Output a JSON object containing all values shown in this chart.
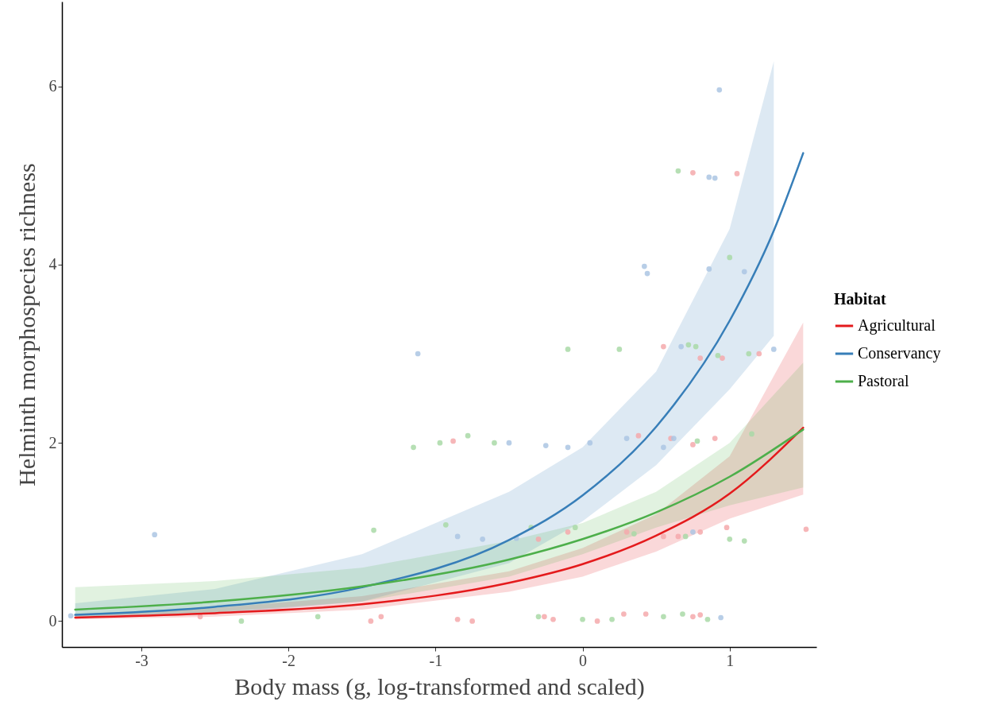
{
  "chart_data": {
    "type": "line",
    "xlabel": "Body mass (g, log-transformed and scaled)",
    "ylabel": "Helminth morphospecies richness",
    "legend_title": "Habitat",
    "legend": "right",
    "grid": false,
    "xlim": [
      -3.54,
      1.59
    ],
    "ylim": [
      -0.29,
      6.95
    ],
    "xticks": [
      -3,
      -2,
      -1,
      0,
      1
    ],
    "yticks": [
      0,
      2,
      4,
      6
    ],
    "series": [
      {
        "type": "scatter",
        "color": "#f4a9ab",
        "x": [
          -2.6,
          -1.44,
          -1.37,
          -0.88,
          -0.85,
          -0.75,
          -0.26,
          -0.2,
          0.1,
          0.28,
          0.43,
          0.75,
          0.8,
          -0.1,
          0.3,
          0.55,
          0.65,
          0.8,
          0.98,
          0.38,
          0.6,
          0.75,
          0.9,
          0.8,
          0.95,
          1.2,
          0.75,
          1.05,
          1.52,
          -0.3,
          0.55
        ],
        "values": [
          0.05,
          0.0,
          0.05,
          2.02,
          0.02,
          0.0,
          0.05,
          0.02,
          0.0,
          0.08,
          0.08,
          0.05,
          0.07,
          1.0,
          1.0,
          0.95,
          0.95,
          1.0,
          1.05,
          2.08,
          2.05,
          1.98,
          2.05,
          2.95,
          2.95,
          3.0,
          5.03,
          5.02,
          1.03,
          0.92,
          3.08
        ]
      },
      {
        "type": "scatter",
        "color": "#abc6e3",
        "x": [
          -3.48,
          -2.91,
          -1.12,
          -0.85,
          -0.45,
          -0.5,
          -0.25,
          -0.1,
          0.05,
          0.3,
          0.55,
          0.42,
          0.44,
          0.67,
          0.86,
          0.93,
          0.86,
          0.9,
          0.94,
          1.1,
          0.75,
          1.3,
          0.62,
          -0.68
        ],
        "values": [
          0.06,
          0.97,
          3.0,
          0.95,
          0.93,
          2.0,
          1.97,
          1.95,
          2.0,
          2.05,
          1.95,
          3.98,
          3.9,
          3.08,
          3.95,
          5.96,
          4.98,
          4.97,
          0.04,
          3.92,
          1.0,
          3.05,
          2.05,
          0.92
        ]
      },
      {
        "type": "scatter",
        "color": "#a9d9a7",
        "x": [
          -2.32,
          -1.8,
          -1.42,
          -1.15,
          -0.97,
          -0.78,
          -0.93,
          -0.3,
          0.0,
          0.2,
          0.55,
          0.68,
          0.85,
          -0.1,
          0.25,
          0.65,
          0.72,
          0.77,
          0.92,
          1.0,
          1.13,
          -0.05,
          0.35,
          0.7,
          1.0,
          1.1,
          1.15,
          0.78,
          -0.6,
          -0.35
        ],
        "values": [
          0.0,
          0.05,
          1.02,
          1.95,
          2.0,
          2.08,
          1.08,
          0.05,
          0.02,
          0.02,
          0.05,
          0.08,
          0.02,
          3.05,
          3.05,
          5.05,
          3.1,
          3.08,
          2.98,
          4.08,
          3.0,
          1.05,
          0.98,
          0.95,
          0.92,
          0.9,
          2.1,
          2.02,
          2.0,
          1.05
        ]
      },
      {
        "name": "Agricultural",
        "type": "line",
        "color": "#e41a1c",
        "x": [
          -3.45,
          -2.5,
          -1.5,
          -0.5,
          0,
          0.5,
          1,
          1.5
        ],
        "values": [
          0.04,
          0.09,
          0.19,
          0.43,
          0.64,
          0.96,
          1.43,
          2.17
        ],
        "lower": [
          0.02,
          0.05,
          0.13,
          0.33,
          0.5,
          0.78,
          1.15,
          1.42
        ],
        "upper": [
          0.08,
          0.15,
          0.28,
          0.56,
          0.82,
          1.2,
          1.85,
          3.35
        ]
      },
      {
        "name": "Conservancy",
        "type": "line",
        "color": "#377eb8",
        "x": [
          -3.45,
          -2.5,
          -1.5,
          -0.5,
          0,
          0.5,
          1,
          1.3,
          1.5
        ],
        "values": [
          0.07,
          0.16,
          0.38,
          0.91,
          1.41,
          2.18,
          3.37,
          4.38,
          5.25
        ],
        "lower": [
          0.03,
          0.08,
          0.22,
          0.65,
          1.12,
          1.75,
          2.6,
          3.2,
          null
        ],
        "upper": [
          0.2,
          0.36,
          0.75,
          1.45,
          1.95,
          2.8,
          4.4,
          6.28,
          null
        ]
      },
      {
        "name": "Pastoral",
        "type": "line",
        "color": "#4daf4a",
        "x": [
          -3.45,
          -2.5,
          -1.5,
          -0.5,
          0,
          0.5,
          1,
          1.5
        ],
        "values": [
          0.13,
          0.22,
          0.39,
          0.69,
          0.92,
          1.22,
          1.62,
          2.15
        ],
        "lower": [
          0.05,
          0.1,
          0.22,
          0.5,
          0.75,
          1.05,
          1.3,
          1.5
        ],
        "upper": [
          0.38,
          0.45,
          0.6,
          0.9,
          1.1,
          1.45,
          2.0,
          2.9
        ]
      }
    ]
  }
}
